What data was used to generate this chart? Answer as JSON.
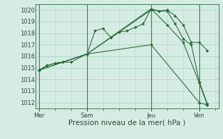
{
  "bg_color": "#d5ece4",
  "grid_color": "#b0d9cc",
  "line_color": "#2d6b3c",
  "marker_color": "#2d6b3c",
  "xlabel": "Pression niveau de la mer( hPa )",
  "ylim": [
    1011.5,
    1020.5
  ],
  "yticks": [
    1012,
    1013,
    1014,
    1015,
    1016,
    1017,
    1018,
    1019,
    1020
  ],
  "xtick_labels": [
    "Mer",
    "Sam",
    "Jeu",
    "Ven"
  ],
  "xtick_positions": [
    0,
    3,
    7,
    10
  ],
  "xlim": [
    -0.2,
    11.2
  ],
  "series": [
    {
      "x": [
        0,
        0.5,
        1.0,
        1.5,
        2.0,
        3.0,
        3.5,
        4.0,
        4.5,
        5.0,
        5.5,
        6.0,
        6.5,
        7.0,
        7.5,
        8.0,
        8.5,
        9.0,
        9.5,
        10.0,
        10.5
      ],
      "y": [
        1014.8,
        1015.2,
        1015.4,
        1015.5,
        1015.5,
        1016.2,
        1018.2,
        1018.4,
        1017.6,
        1018.1,
        1018.2,
        1018.5,
        1018.8,
        1020.1,
        1019.9,
        1020.0,
        1019.5,
        1018.7,
        1017.2,
        1017.2,
        1016.5
      ]
    },
    {
      "x": [
        0,
        0.5,
        1.0,
        1.5,
        3.0,
        7.0,
        7.5,
        8.0,
        8.5,
        9.0,
        9.5,
        10.0,
        10.5
      ],
      "y": [
        1014.8,
        1015.2,
        1015.4,
        1015.5,
        1016.2,
        1020.0,
        1019.9,
        1019.9,
        1018.8,
        1017.5,
        1017.0,
        1013.8,
        1011.9
      ]
    },
    {
      "x": [
        0,
        3.0,
        7.0,
        8.0,
        9.0,
        10.0,
        10.5
      ],
      "y": [
        1014.8,
        1016.2,
        1020.1,
        1018.7,
        1017.2,
        1013.7,
        1011.8
      ]
    },
    {
      "x": [
        0,
        3.0,
        7.0,
        10.0,
        10.5
      ],
      "y": [
        1014.8,
        1016.2,
        1017.0,
        1012.0,
        1011.8
      ]
    }
  ],
  "vlines_x": [
    0,
    3,
    7,
    10
  ],
  "vline_color": "#3a7a50",
  "tick_fontsize": 6.0,
  "xlabel_fontsize": 7.5
}
